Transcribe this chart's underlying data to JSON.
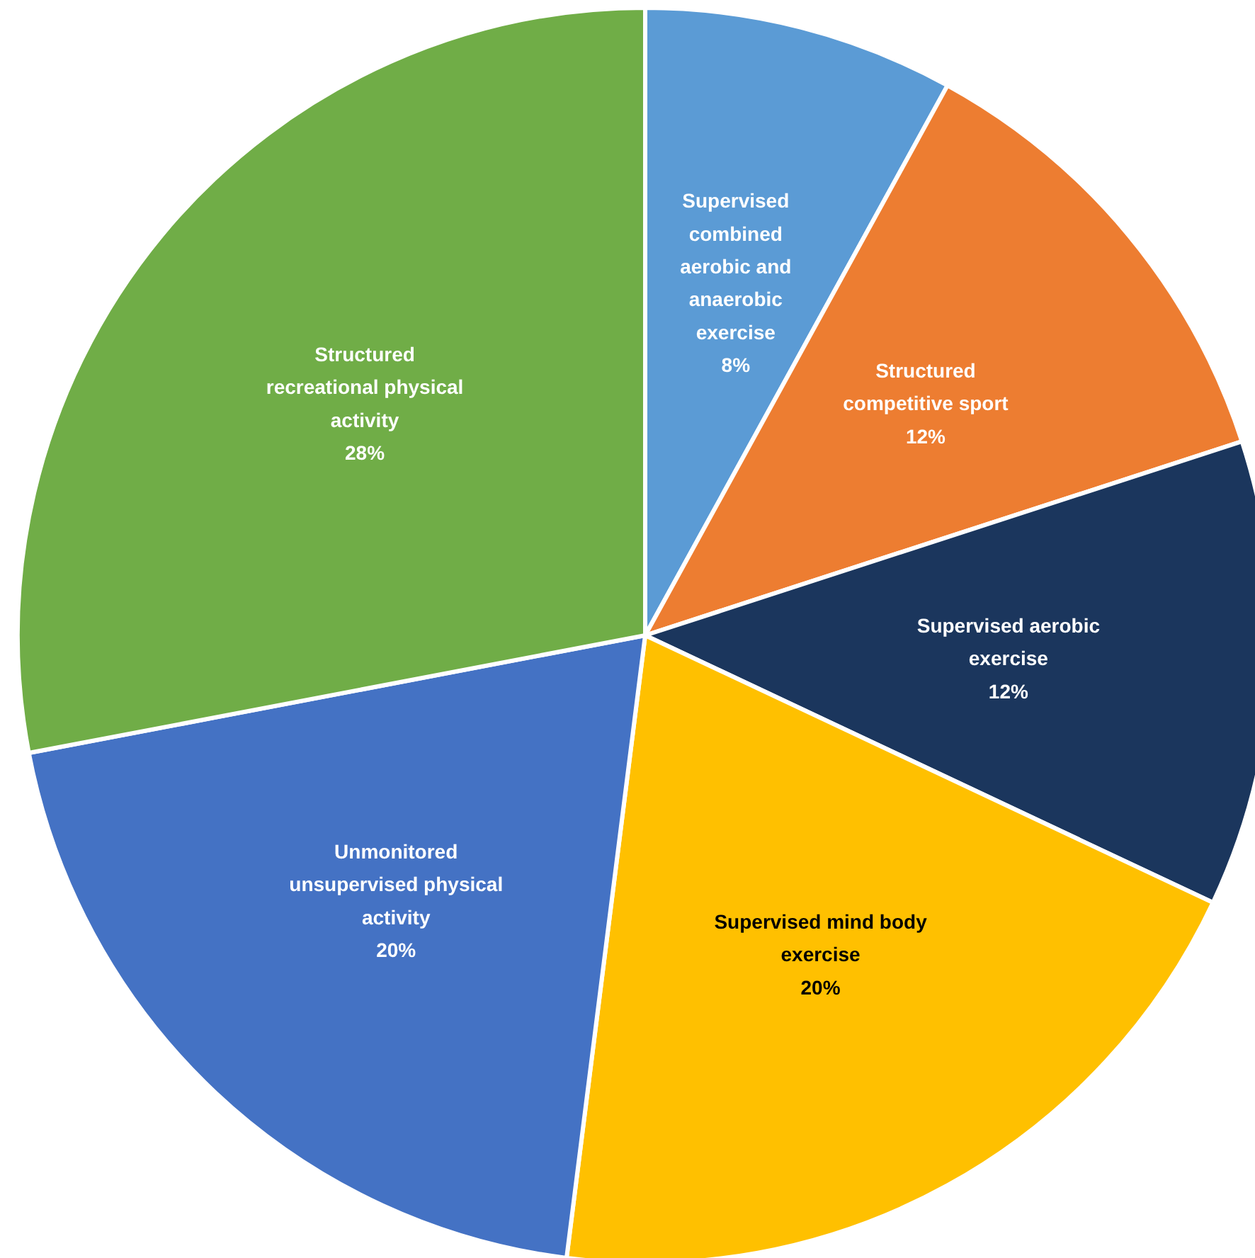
{
  "chart_data": {
    "type": "pie",
    "categories": [
      "Supervised combined aerobic and anaerobic exercise",
      "Structured competitive sport",
      "Supervised aerobic exercise",
      "Supervised mind body exercise",
      "Unmonitored unsupervised physical activity",
      "Structured recreational physical activity"
    ],
    "values": [
      8,
      12,
      12,
      20,
      20,
      28
    ],
    "colors": [
      "#5b9bd5",
      "#ed7d31",
      "#1b365d",
      "#ffc000",
      "#4472c4",
      "#70ad47"
    ],
    "value_labels": [
      "8%",
      "12%",
      "12%",
      "20%",
      "20%",
      "28%"
    ]
  }
}
